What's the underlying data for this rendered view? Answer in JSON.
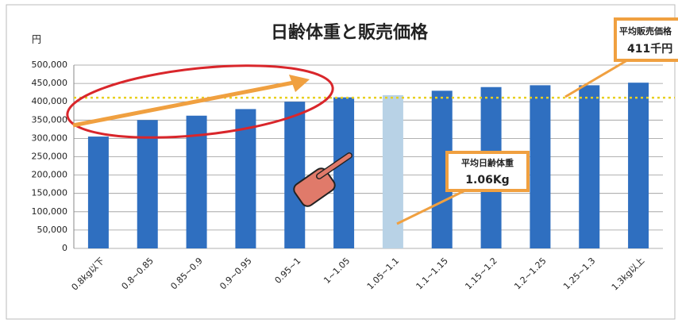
{
  "chart_data": {
    "type": "bar",
    "title": "日齢体重と販売価格",
    "y_unit": "円",
    "categories": [
      "0.8kg以下",
      "0.8~0.85",
      "0.85~0.9",
      "0.9~0.95",
      "0.95~1",
      "1~1.05",
      "1.05~1.1",
      "1.1~1.15",
      "1.15~1.2",
      "1.2~1.25",
      "1.25~1.3",
      "1.3kg以上"
    ],
    "values": [
      305000,
      350000,
      362000,
      380000,
      400000,
      412000,
      418000,
      430000,
      440000,
      445000,
      445000,
      452000
    ],
    "colors": [
      "#2f6fc0",
      "#2f6fc0",
      "#2f6fc0",
      "#2f6fc0",
      "#2f6fc0",
      "#2f6fc0",
      "#b8d2e6",
      "#2f6fc0",
      "#2f6fc0",
      "#2f6fc0",
      "#2f6fc0",
      "#2f6fc0"
    ],
    "ylim": [
      0,
      500000
    ],
    "yticks": [
      {
        "value": 0,
        "label": "0"
      },
      {
        "value": 50000,
        "label": "50,000"
      },
      {
        "value": 100000,
        "label": "100,000"
      },
      {
        "value": 150000,
        "label": "150,000"
      },
      {
        "value": 200000,
        "label": "200,000"
      },
      {
        "value": 250000,
        "label": "250,000"
      },
      {
        "value": 300000,
        "label": "300,000"
      },
      {
        "value": 350000,
        "label": "350,000"
      },
      {
        "value": 400000,
        "label": "400,000"
      },
      {
        "value": 450000,
        "label": "450,000"
      },
      {
        "value": 500000,
        "label": "500,000"
      }
    ],
    "grid": true,
    "reference_line": 411000,
    "annotations": [
      {
        "title": "平均販売価格",
        "value": "411千円"
      },
      {
        "title": "平均日齢体重",
        "value": "1.06Kg"
      }
    ]
  }
}
